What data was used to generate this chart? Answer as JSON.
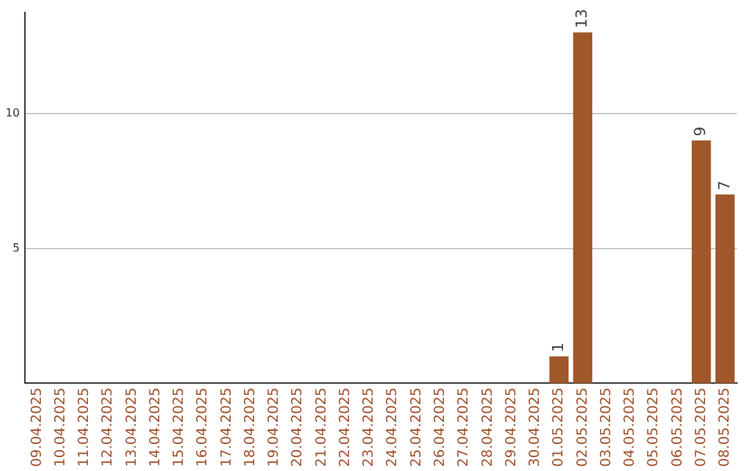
{
  "chart_data": {
    "type": "bar",
    "categories": [
      "09.04.2025",
      "10.04.2025",
      "11.04.2025",
      "12.04.2025",
      "13.04.2025",
      "14.04.2025",
      "15.04.2025",
      "16.04.2025",
      "17.04.2025",
      "18.04.2025",
      "19.04.2025",
      "20.04.2025",
      "21.04.2025",
      "22.04.2025",
      "23.04.2025",
      "24.04.2025",
      "25.04.2025",
      "26.04.2025",
      "27.04.2025",
      "28.04.2025",
      "29.04.2025",
      "30.04.2025",
      "01.05.2025",
      "02.05.2025",
      "03.05.2025",
      "04.05.2025",
      "05.05.2025",
      "06.05.2025",
      "07.05.2025",
      "08.05.2025"
    ],
    "values": [
      0,
      0,
      0,
      0,
      0,
      0,
      0,
      0,
      0,
      0,
      0,
      0,
      0,
      0,
      0,
      0,
      0,
      0,
      0,
      0,
      0,
      0,
      1,
      13,
      0,
      0,
      0,
      0,
      9,
      7
    ],
    "value_labels": [
      null,
      null,
      null,
      null,
      null,
      null,
      null,
      null,
      null,
      null,
      null,
      null,
      null,
      null,
      null,
      null,
      null,
      null,
      null,
      null,
      null,
      null,
      "1",
      "13",
      null,
      null,
      null,
      null,
      "9",
      "7"
    ],
    "color": "#a0572a",
    "ylim": [
      0,
      13.75
    ],
    "yticks": [
      5,
      10
    ],
    "grid": "y",
    "legend": false
  }
}
